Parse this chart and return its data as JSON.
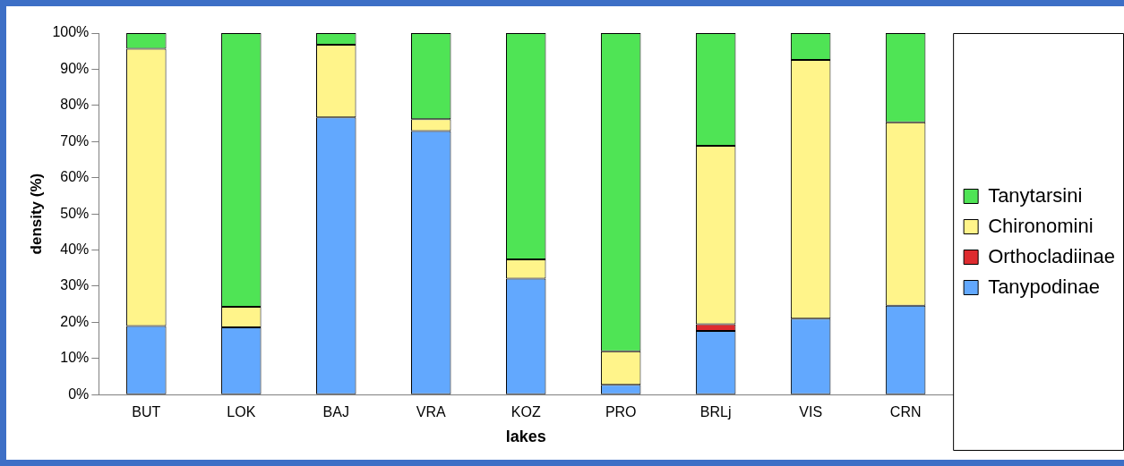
{
  "chart_data": {
    "type": "bar",
    "stacked": true,
    "xlabel": "lakes",
    "ylabel": "density (%)",
    "categories": [
      "BUT",
      "LOK",
      "BAJ",
      "VRA",
      "KOZ",
      "PRO",
      "BRLj",
      "VIS",
      "CRN"
    ],
    "series": [
      {
        "name": "Tanypodinae",
        "color": "#62a8fe",
        "values": [
          19.0,
          18.6,
          76.7,
          72.9,
          32.1,
          2.7,
          17.6,
          21.0,
          24.6
        ]
      },
      {
        "name": "Orthocladiinae",
        "color": "#de2b2f",
        "values": [
          0,
          0,
          0,
          0,
          0,
          0,
          1.9,
          0,
          0
        ]
      },
      {
        "name": "Chironomini",
        "color": "#fff48a",
        "values": [
          76.7,
          5.7,
          20.1,
          3.3,
          5.3,
          9.3,
          49.3,
          71.6,
          50.7
        ]
      },
      {
        "name": "Tanytarsini",
        "color": "#4fe455",
        "values": [
          4.3,
          75.7,
          3.2,
          23.8,
          62.6,
          88.0,
          31.2,
          7.4,
          24.7
        ]
      }
    ],
    "ylim": [
      0,
      100
    ],
    "yticks": [
      {
        "value": 0,
        "label": "0%"
      },
      {
        "value": 10,
        "label": "10%"
      },
      {
        "value": 20,
        "label": "20%"
      },
      {
        "value": 30,
        "label": "30%"
      },
      {
        "value": 40,
        "label": "40%"
      },
      {
        "value": 50,
        "label": "50%"
      },
      {
        "value": 60,
        "label": "60%"
      },
      {
        "value": 70,
        "label": "70%"
      },
      {
        "value": 80,
        "label": "80%"
      },
      {
        "value": 90,
        "label": "90%"
      },
      {
        "value": 100,
        "label": "100%"
      }
    ],
    "grid": false,
    "legend": "right"
  }
}
